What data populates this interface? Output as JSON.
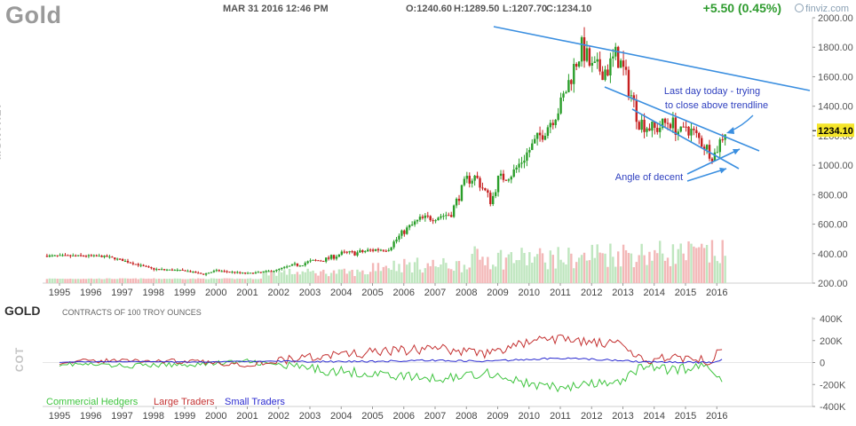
{
  "header": {
    "title": "Gold",
    "datetime": "MAR 31 2016 12:46 PM",
    "open": "O:1240.60",
    "high": "H:1289.50",
    "low": "L:1207.70",
    "close": "C:1234.10",
    "change": "+5.50 (0.45%)",
    "brand": "finviz.com"
  },
  "price_panel": {
    "vertical_label": "MONTHLY",
    "current_price": "1234.10",
    "annotations": [
      "Last day today - trying",
      "to close above trendline",
      "Angle of decent"
    ]
  },
  "cot_panel": {
    "symbol": "GOLD",
    "title": "CONTRACTS OF 100 TROY OUNCES",
    "vertical_label": "COT",
    "legend": [
      "Commercial Hedgers",
      "Large Traders",
      "Small Traders"
    ]
  },
  "colors": {
    "up": "#2a9e2a",
    "down": "#c62020",
    "trendline": "#3b8fe0",
    "annotation": "#2e3fbf",
    "commercial": "#3fc43f",
    "large": "#c43232",
    "small": "#2a2ad0",
    "volume": "#f3b8b8",
    "price_box": "#f5e52a"
  },
  "chart_data": [
    {
      "type": "candlestick",
      "title": "Gold",
      "interval": "monthly",
      "x_tick_labels": [
        "1995",
        "1996",
        "1997",
        "1998",
        "1999",
        "2000",
        "2001",
        "2002",
        "2003",
        "2004",
        "2005",
        "2006",
        "2007",
        "2008",
        "2009",
        "2010",
        "2011",
        "2012",
        "2013",
        "2014",
        "2015",
        "2016"
      ],
      "y_tick_labels": [
        "200.00",
        "400.00",
        "600.00",
        "800.00",
        "1000.00",
        "1200.00",
        "1400.00",
        "1600.00",
        "1800.00",
        "2000.00"
      ],
      "ylim": [
        200,
        2000
      ],
      "last_price": 1234.1,
      "approx_close_path": [
        {
          "year": 1995.0,
          "close": 385
        },
        {
          "year": 1996.0,
          "close": 385
        },
        {
          "year": 1996.5,
          "close": 380
        },
        {
          "year": 1997.0,
          "close": 355
        },
        {
          "year": 1997.5,
          "close": 325
        },
        {
          "year": 1998.0,
          "close": 295
        },
        {
          "year": 1998.5,
          "close": 290
        },
        {
          "year": 1999.0,
          "close": 285
        },
        {
          "year": 1999.6,
          "close": 260
        },
        {
          "year": 2000.0,
          "close": 285
        },
        {
          "year": 2000.5,
          "close": 275
        },
        {
          "year": 2001.0,
          "close": 265
        },
        {
          "year": 2001.5,
          "close": 275
        },
        {
          "year": 2002.0,
          "close": 290
        },
        {
          "year": 2002.5,
          "close": 320
        },
        {
          "year": 2003.0,
          "close": 345
        },
        {
          "year": 2003.5,
          "close": 360
        },
        {
          "year": 2004.0,
          "close": 400
        },
        {
          "year": 2004.5,
          "close": 405
        },
        {
          "year": 2005.0,
          "close": 425
        },
        {
          "year": 2005.5,
          "close": 435
        },
        {
          "year": 2006.0,
          "close": 550
        },
        {
          "year": 2006.5,
          "close": 630
        },
        {
          "year": 2007.0,
          "close": 650
        },
        {
          "year": 2007.5,
          "close": 670
        },
        {
          "year": 2008.0,
          "close": 900
        },
        {
          "year": 2008.3,
          "close": 920
        },
        {
          "year": 2008.8,
          "close": 750
        },
        {
          "year": 2009.0,
          "close": 900
        },
        {
          "year": 2009.5,
          "close": 950
        },
        {
          "year": 2010.0,
          "close": 1100
        },
        {
          "year": 2010.5,
          "close": 1240
        },
        {
          "year": 2011.0,
          "close": 1400
        },
        {
          "year": 2011.5,
          "close": 1700
        },
        {
          "year": 2011.7,
          "close": 1800
        },
        {
          "year": 2012.0,
          "close": 1650
        },
        {
          "year": 2012.5,
          "close": 1650
        },
        {
          "year": 2012.8,
          "close": 1750
        },
        {
          "year": 2013.0,
          "close": 1650
        },
        {
          "year": 2013.3,
          "close": 1450
        },
        {
          "year": 2013.5,
          "close": 1300
        },
        {
          "year": 2014.0,
          "close": 1240
        },
        {
          "year": 2014.5,
          "close": 1300
        },
        {
          "year": 2014.9,
          "close": 1200
        },
        {
          "year": 2015.0,
          "close": 1270
        },
        {
          "year": 2015.5,
          "close": 1160
        },
        {
          "year": 2015.9,
          "close": 1060
        },
        {
          "year": 2016.0,
          "close": 1110
        },
        {
          "year": 2016.25,
          "close": 1234
        }
      ],
      "volume_bars_present": true
    },
    {
      "type": "line",
      "title": "CONTRACTS OF 100 TROY OUNCES",
      "x_tick_labels": [
        "1995",
        "1996",
        "1997",
        "1998",
        "1999",
        "2000",
        "2001",
        "2002",
        "2003",
        "2004",
        "2005",
        "2006",
        "2007",
        "2008",
        "2009",
        "2010",
        "2011",
        "2012",
        "2013",
        "2014",
        "2015",
        "2016"
      ],
      "y_tick_labels": [
        "400K",
        "200K",
        "0",
        "-200K",
        "-400K"
      ],
      "ylim": [
        -400000,
        400000
      ],
      "series": [
        {
          "name": "Commercial Hedgers",
          "points": [
            {
              "year": 1995,
              "value": -10000
            },
            {
              "year": 1997,
              "value": -30000
            },
            {
              "year": 1999,
              "value": -20000
            },
            {
              "year": 2001,
              "value": 10000
            },
            {
              "year": 2003,
              "value": -60000
            },
            {
              "year": 2005,
              "value": -100000
            },
            {
              "year": 2007,
              "value": -150000
            },
            {
              "year": 2008.7,
              "value": -90000
            },
            {
              "year": 2010,
              "value": -200000
            },
            {
              "year": 2011,
              "value": -230000
            },
            {
              "year": 2012,
              "value": -200000
            },
            {
              "year": 2013,
              "value": -180000
            },
            {
              "year": 2013.6,
              "value": -20000
            },
            {
              "year": 2014.5,
              "value": -70000
            },
            {
              "year": 2015.8,
              "value": -30000
            },
            {
              "year": 2016.25,
              "value": -180000
            }
          ]
        },
        {
          "name": "Large Traders",
          "points": [
            {
              "year": 1995,
              "value": 5000
            },
            {
              "year": 1997,
              "value": 20000
            },
            {
              "year": 1999,
              "value": 10000
            },
            {
              "year": 2001,
              "value": -20000
            },
            {
              "year": 2003,
              "value": 50000
            },
            {
              "year": 2005,
              "value": 90000
            },
            {
              "year": 2007,
              "value": 130000
            },
            {
              "year": 2008.7,
              "value": 80000
            },
            {
              "year": 2010,
              "value": 190000
            },
            {
              "year": 2011,
              "value": 220000
            },
            {
              "year": 2012,
              "value": 180000
            },
            {
              "year": 2013,
              "value": 160000
            },
            {
              "year": 2013.6,
              "value": 10000
            },
            {
              "year": 2014.5,
              "value": 60000
            },
            {
              "year": 2015.8,
              "value": 20000
            },
            {
              "year": 2016.25,
              "value": 190000
            }
          ]
        },
        {
          "name": "Small Traders",
          "points": [
            {
              "year": 1995,
              "value": 5000
            },
            {
              "year": 1997,
              "value": 10000
            },
            {
              "year": 1999,
              "value": 5000
            },
            {
              "year": 2001,
              "value": 10000
            },
            {
              "year": 2003,
              "value": 10000
            },
            {
              "year": 2005,
              "value": 10000
            },
            {
              "year": 2007,
              "value": 20000
            },
            {
              "year": 2008.7,
              "value": 10000
            },
            {
              "year": 2010,
              "value": 30000
            },
            {
              "year": 2011,
              "value": 40000
            },
            {
              "year": 2012,
              "value": 30000
            },
            {
              "year": 2013,
              "value": 20000
            },
            {
              "year": 2013.6,
              "value": 5000
            },
            {
              "year": 2014.5,
              "value": 5000
            },
            {
              "year": 2015.8,
              "value": 0
            },
            {
              "year": 2016.25,
              "value": 30000
            }
          ]
        }
      ]
    }
  ]
}
